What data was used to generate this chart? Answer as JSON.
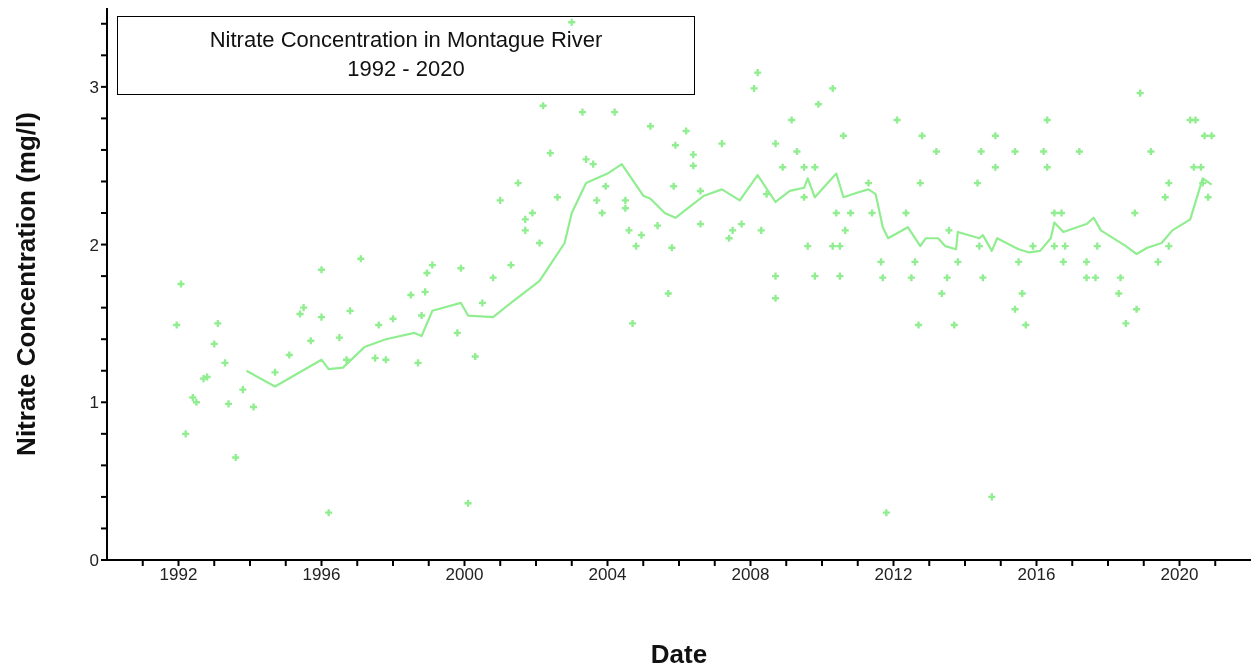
{
  "chart_data": {
    "type": "scatter",
    "title": "Nitrate Concentration in Montague River",
    "subtitle": "1992 - 2020",
    "xlabel": "Date",
    "ylabel": "Nitrate Concentration (mg/l)",
    "xlim": [
      1990,
      2022
    ],
    "ylim": [
      0,
      3.5
    ],
    "xticks": [
      {
        "value": 1991,
        "label": null
      },
      1992,
      {
        "value": 1993,
        "label": null
      },
      {
        "value": 1994,
        "label": null
      },
      {
        "value": 1995,
        "label": null
      },
      1996,
      {
        "value": 1997,
        "label": null
      },
      {
        "value": 1998,
        "label": null
      },
      {
        "value": 1999,
        "label": null
      },
      2000,
      {
        "value": 2001,
        "label": null
      },
      {
        "value": 2002,
        "label": null
      },
      {
        "value": 2003,
        "label": null
      },
      2004,
      {
        "value": 2005,
        "label": null
      },
      {
        "value": 2006,
        "label": null
      },
      {
        "value": 2007,
        "label": null
      },
      2008,
      {
        "value": 2009,
        "label": null
      },
      {
        "value": 2010,
        "label": null
      },
      {
        "value": 2011,
        "label": null
      },
      2012,
      {
        "value": 2013,
        "label": null
      },
      {
        "value": 2014,
        "label": null
      },
      {
        "value": 2015,
        "label": null
      },
      2016,
      {
        "value": 2017,
        "label": null
      },
      {
        "value": 2018,
        "label": null
      },
      {
        "value": 2019,
        "label": null
      },
      2020,
      {
        "value": 2021,
        "label": null
      }
    ],
    "yticks": [
      0,
      {
        "value": 0.2,
        "label": null
      },
      {
        "value": 0.4,
        "label": null
      },
      {
        "value": 0.6,
        "label": null
      },
      {
        "value": 0.8,
        "label": null
      },
      1,
      {
        "value": 1.2,
        "label": null
      },
      {
        "value": 1.4,
        "label": null
      },
      {
        "value": 1.6,
        "label": null
      },
      {
        "value": 1.8,
        "label": null
      },
      2,
      {
        "value": 2.2,
        "label": null
      },
      {
        "value": 2.4,
        "label": null
      },
      {
        "value": 2.6,
        "label": null
      },
      {
        "value": 2.8,
        "label": null
      },
      3,
      {
        "value": 3.2,
        "label": null
      },
      {
        "value": 3.4,
        "label": null
      }
    ],
    "series": [
      {
        "marker": "cross",
        "color": "#90ee90",
        "x": [
          1991.95,
          1992.07,
          1992.2,
          1992.4,
          1992.5,
          1992.7,
          1992.8,
          1993.0,
          1993.1,
          1993.3,
          1993.4,
          1993.6,
          1993.8,
          1994.1,
          1994.7,
          1995.1,
          1995.4,
          1995.5,
          1995.7,
          1996.0,
          1996.0,
          1996.2,
          1996.5,
          1996.7,
          1996.8,
          1997.1,
          1997.5,
          1997.6,
          1997.8,
          1998.0,
          1998.5,
          1998.7,
          1998.8,
          1998.9,
          1998.95,
          1999.1,
          1999.8,
          1999.9,
          2000.1,
          2000.3,
          2000.5,
          2000.8,
          2001.0,
          2001.3,
          2001.5,
          2001.7,
          2001.7,
          2001.9,
          2002.1,
          2002.2,
          2002.4,
          2002.6,
          2003.0,
          2003.3,
          2003.4,
          2003.6,
          2003.7,
          2003.85,
          2003.95,
          2004.2,
          2004.5,
          2004.5,
          2004.6,
          2004.7,
          2004.8,
          2004.95,
          2005.2,
          2005.4,
          2005.7,
          2005.8,
          2005.85,
          2005.9,
          2006.2,
          2006.4,
          2006.4,
          2006.6,
          2006.6,
          2007.2,
          2007.4,
          2007.5,
          2007.75,
          2008.1,
          2008.2,
          2008.3,
          2008.45,
          2008.7,
          2008.7,
          2008.7,
          2008.9,
          2009.15,
          2009.3,
          2009.5,
          2009.5,
          2009.6,
          2009.8,
          2009.8,
          2009.9,
          2010.3,
          2010.3,
          2010.4,
          2010.5,
          2010.5,
          2010.6,
          2010.65,
          2010.8,
          2011.3,
          2011.4,
          2011.65,
          2011.7,
          2011.8,
          2012.1,
          2012.35,
          2012.5,
          2012.6,
          2012.7,
          2012.75,
          2012.8,
          2013.2,
          2013.35,
          2013.5,
          2013.55,
          2013.7,
          2013.8,
          2014.35,
          2014.4,
          2014.45,
          2014.5,
          2014.75,
          2014.85,
          2014.85,
          2015.4,
          2015.4,
          2015.5,
          2015.6,
          2015.7,
          2015.9,
          2016.2,
          2016.3,
          2016.3,
          2016.5,
          2016.5,
          2016.7,
          2016.75,
          2016.8,
          2017.2,
          2017.4,
          2017.4,
          2017.65,
          2017.7,
          2018.3,
          2018.35,
          2018.5,
          2018.75,
          2018.8,
          2018.9,
          2019.2,
          2019.4,
          2019.6,
          2019.7,
          2019.7,
          2020.3,
          2020.4,
          2020.45,
          2020.6,
          2020.65,
          2020.7,
          2020.8,
          2020.9
        ],
        "values": [
          1.49,
          1.75,
          0.8,
          1.03,
          1.0,
          1.15,
          1.16,
          1.37,
          1.5,
          1.25,
          0.99,
          0.65,
          1.08,
          0.97,
          1.19,
          1.3,
          1.56,
          1.6,
          1.39,
          1.84,
          1.54,
          0.3,
          1.41,
          1.27,
          1.58,
          1.91,
          1.28,
          1.49,
          1.27,
          1.53,
          1.68,
          1.25,
          1.55,
          1.7,
          1.82,
          1.87,
          1.44,
          1.85,
          0.36,
          1.29,
          1.63,
          1.79,
          2.28,
          1.87,
          2.39,
          2.16,
          2.09,
          2.2,
          2.01,
          2.88,
          2.58,
          2.3,
          3.41,
          2.84,
          2.54,
          2.51,
          2.28,
          2.2,
          2.37,
          2.84,
          2.28,
          2.23,
          2.09,
          1.5,
          1.99,
          2.06,
          2.75,
          2.12,
          1.69,
          1.98,
          2.37,
          2.63,
          2.72,
          2.57,
          2.5,
          2.34,
          2.13,
          2.64,
          2.04,
          2.09,
          2.13,
          2.99,
          3.09,
          2.09,
          2.32,
          2.64,
          1.8,
          1.66,
          2.49,
          2.79,
          2.59,
          2.49,
          2.3,
          1.99,
          2.49,
          1.8,
          2.89,
          2.99,
          1.99,
          2.2,
          1.99,
          1.8,
          2.69,
          2.09,
          2.2,
          2.39,
          2.2,
          1.89,
          1.79,
          0.3,
          2.79,
          2.2,
          1.79,
          1.89,
          1.49,
          2.39,
          2.69,
          2.59,
          1.69,
          1.79,
          2.09,
          1.49,
          1.89,
          2.39,
          1.99,
          2.59,
          1.79,
          0.4,
          2.69,
          2.49,
          2.59,
          1.59,
          1.89,
          1.69,
          1.49,
          1.99,
          2.59,
          2.79,
          2.49,
          2.2,
          1.99,
          2.2,
          1.89,
          1.99,
          2.59,
          1.89,
          1.79,
          1.79,
          1.99,
          1.69,
          1.79,
          1.5,
          2.2,
          1.59,
          2.96,
          2.59,
          1.89,
          2.3,
          2.39,
          1.99,
          2.79,
          2.49,
          2.79,
          2.49,
          2.39,
          2.69,
          2.3,
          2.69
        ]
      },
      {
        "type": "line",
        "marker": "none",
        "line_style": "solid",
        "color": "#90ee90",
        "x": [
          1993.9,
          1994.7,
          1996.0,
          1996.2,
          1996.6,
          1997.2,
          1997.8,
          1998.6,
          1998.8,
          1999.1,
          1999.9,
          2000.1,
          2000.8,
          2001.3,
          2002.1,
          2002.8,
          2003.0,
          2003.4,
          2004.0,
          2004.4,
          2005.0,
          2005.2,
          2005.6,
          2005.9,
          2006.7,
          2007.2,
          2007.7,
          2008.2,
          2008.7,
          2009.1,
          2009.5,
          2009.6,
          2009.8,
          2010.4,
          2010.6,
          2011.0,
          2011.3,
          2011.5,
          2011.7,
          2011.85,
          2012.4,
          2012.75,
          2012.9,
          2013.25,
          2013.45,
          2013.75,
          2013.8,
          2014.4,
          2014.5,
          2014.75,
          2014.9,
          2015.5,
          2015.8,
          2016.1,
          2016.4,
          2016.5,
          2016.75,
          2017.4,
          2017.6,
          2017.8,
          2018.5,
          2018.8,
          2019.1,
          2019.5,
          2019.8,
          2020.3,
          2020.65,
          2020.9
        ],
        "values": [
          1.2,
          1.1,
          1.27,
          1.21,
          1.22,
          1.35,
          1.4,
          1.44,
          1.42,
          1.58,
          1.63,
          1.55,
          1.54,
          1.63,
          1.77,
          2.01,
          2.2,
          2.39,
          2.45,
          2.51,
          2.31,
          2.29,
          2.2,
          2.17,
          2.31,
          2.35,
          2.28,
          2.44,
          2.27,
          2.34,
          2.36,
          2.42,
          2.3,
          2.45,
          2.3,
          2.33,
          2.35,
          2.32,
          2.11,
          2.04,
          2.11,
          1.99,
          2.04,
          2.04,
          1.99,
          1.97,
          2.08,
          2.04,
          2.06,
          1.96,
          2.04,
          1.97,
          1.95,
          1.96,
          2.04,
          2.14,
          2.08,
          2.13,
          2.17,
          2.09,
          1.99,
          1.94,
          1.98,
          2.01,
          2.09,
          2.16,
          2.42,
          2.38
        ]
      }
    ]
  }
}
